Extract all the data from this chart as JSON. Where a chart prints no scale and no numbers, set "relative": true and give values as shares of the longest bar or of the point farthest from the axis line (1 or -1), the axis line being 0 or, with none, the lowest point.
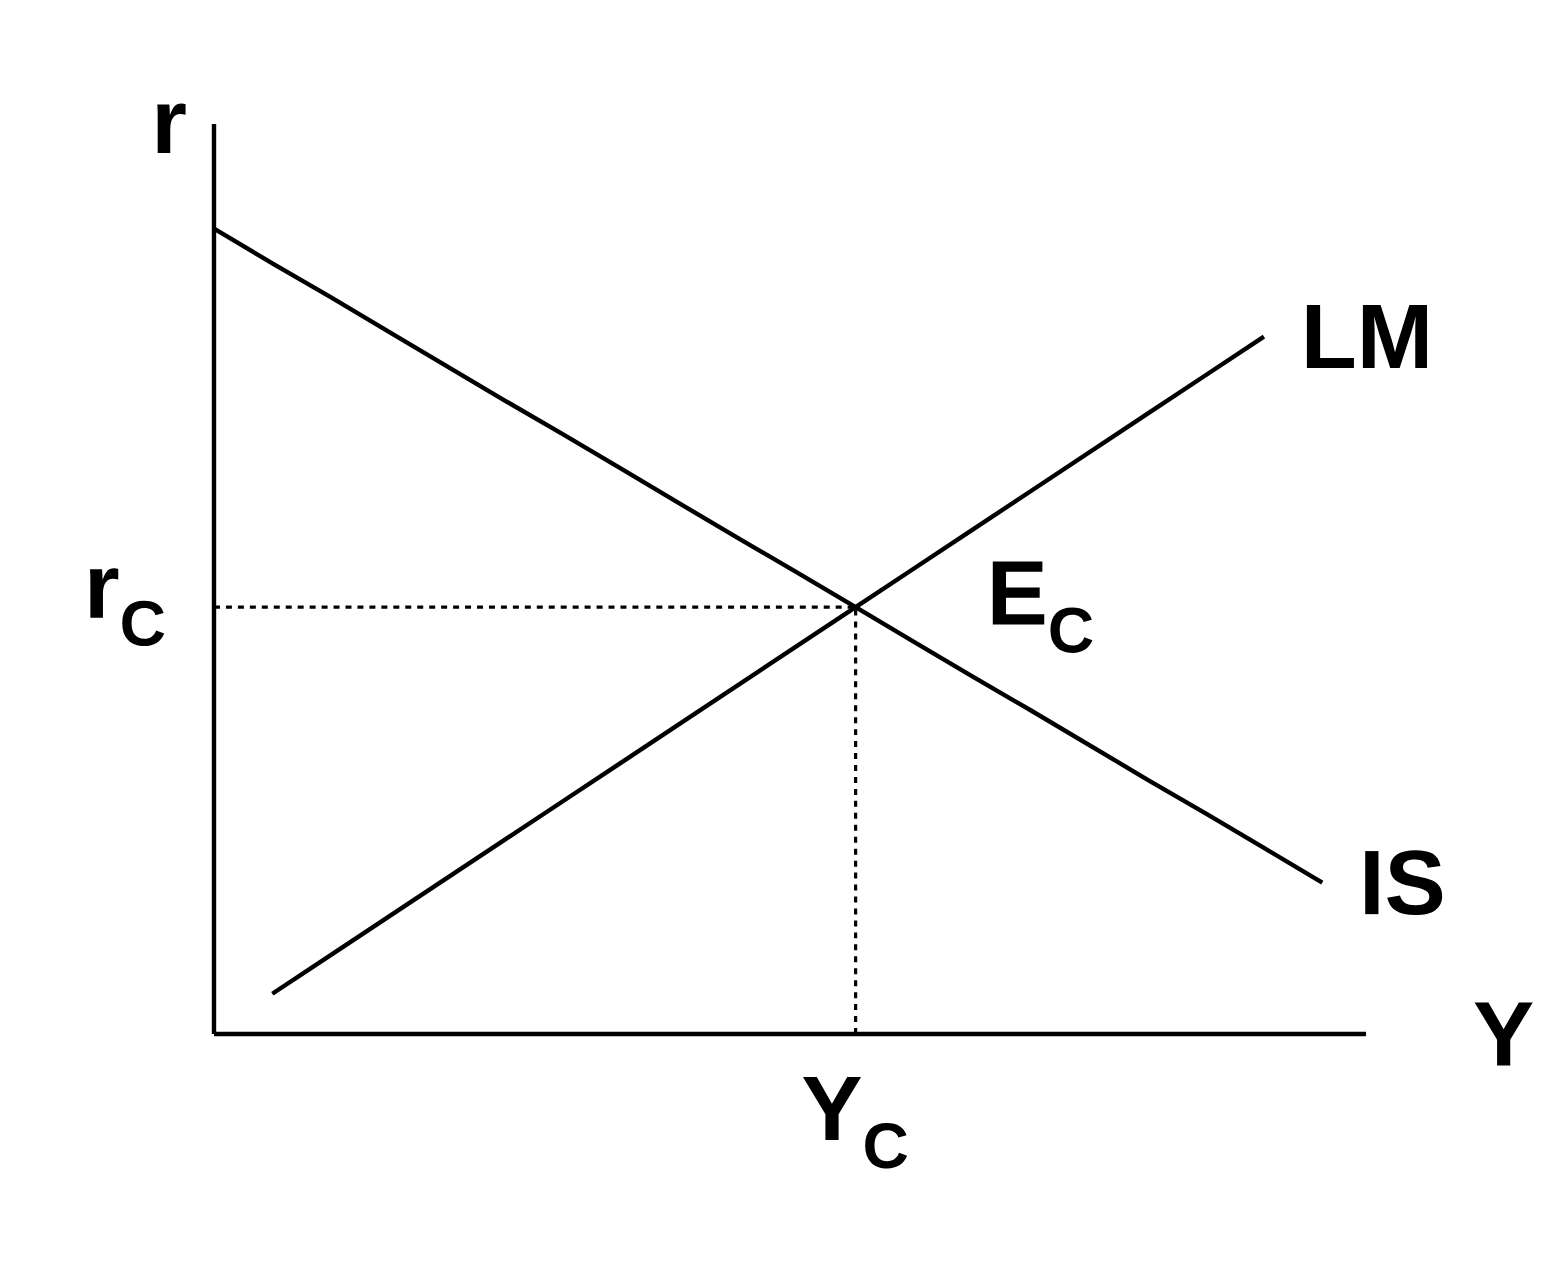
{
  "chart_data": {
    "type": "line",
    "relative": true,
    "xlabel": "Y",
    "ylabel": "r",
    "marker": "none",
    "line_style": "solid",
    "categories": [
      null,
      null,
      null,
      null,
      null,
      null,
      null,
      null,
      null,
      null,
      null,
      null,
      null,
      null,
      null,
      null,
      null,
      null,
      null,
      null
    ],
    "series": [
      {
        "name": "IS",
        "color": "#000000",
        "values": [
          1,
          0.957,
          0.915,
          0.872,
          0.829,
          0.786,
          0.744,
          0.701,
          0.658,
          0.615,
          0.573,
          0.53,
          0.487,
          0.444,
          0.402,
          0.359,
          0.316,
          0.274,
          0.231,
          0.188
        ]
      },
      {
        "name": "LM",
        "color": "#000000",
        "values": [
          null,
          0.05,
          0.098,
          0.146,
          0.194,
          0.242,
          0.29,
          0.338,
          0.386,
          0.434,
          0.482,
          0.53,
          0.578,
          0.626,
          0.674,
          0.722,
          0.77,
          0.818,
          0.866,
          null
        ]
      }
    ],
    "ref_lines": [
      {
        "axis": "y",
        "value": 0.53,
        "label": "r$_{C}$",
        "line_style": "dashed",
        "color": "#000000"
      }
    ],
    "annotations": [
      "E$_{C}$",
      "Y$_{C}$"
    ]
  }
}
